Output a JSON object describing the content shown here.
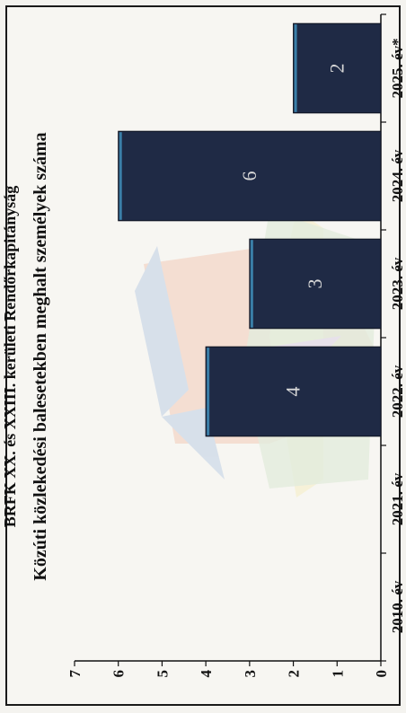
{
  "header": {
    "unit": "BRFK XX. és XXIII. kerületi Rendőrkapitányság"
  },
  "chart_data": {
    "type": "bar",
    "title": "Közúti közlekedési balesetekben meghalt személyek száma",
    "categories": [
      "2010. év",
      "2021. év",
      "2022. év",
      "2023. év",
      "2024. év",
      "2025. év*"
    ],
    "values": [
      0,
      0,
      4,
      3,
      6,
      2
    ],
    "data_labels": [
      "",
      "",
      "4",
      "3",
      "6",
      "2"
    ],
    "ylim": [
      0,
      7
    ],
    "yticks": [
      "0",
      "1",
      "2",
      "3",
      "4",
      "5",
      "6",
      "7"
    ],
    "grid": false,
    "legend": "none",
    "colors": {
      "bar": "#1f2a45",
      "bar_edge": "#3a7fa8",
      "label": "#d8d8d8",
      "axis": "#111111"
    }
  }
}
